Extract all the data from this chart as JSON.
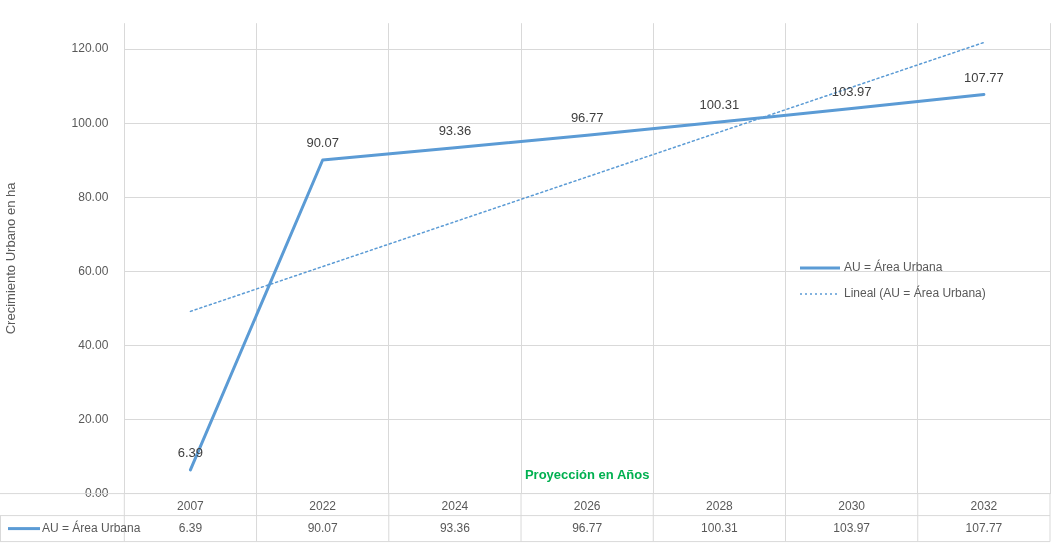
{
  "chart_data": {
    "type": "line",
    "categories": [
      "2007",
      "2022",
      "2024",
      "2026",
      "2028",
      "2030",
      "2032"
    ],
    "series": [
      {
        "name": "AU = Área Urbana",
        "color": "#5b9bd5",
        "values": [
          6.39,
          90.07,
          93.36,
          96.77,
          100.31,
          103.97,
          107.77
        ],
        "value_labels": [
          "6.39",
          "90.07",
          "93.36",
          "96.77",
          "100.31",
          "103.97",
          "107.77"
        ],
        "line_style": "solid"
      },
      {
        "name": "Lineal (AU = Área Urbana)",
        "color": "#5b9bd5",
        "values": [
          49.2,
          61.3,
          73.4,
          85.5,
          97.6,
          109.7,
          121.8
        ],
        "line_style": "dotted"
      }
    ],
    "ylabel": "Crecimiento Urbano en ha",
    "ylim": [
      0,
      127
    ],
    "yticks": [
      {
        "value": 0,
        "label": "0.00"
      },
      {
        "value": 20,
        "label": "20.00"
      },
      {
        "value": 40,
        "label": "40.00"
      },
      {
        "value": 60,
        "label": "60.00"
      },
      {
        "value": 80,
        "label": "80.00"
      },
      {
        "value": 100,
        "label": "100.00"
      },
      {
        "value": 120,
        "label": "120.00"
      }
    ],
    "annotations": [
      "Proyección en Años"
    ],
    "grid": true,
    "legend": "right",
    "marker": "none"
  }
}
